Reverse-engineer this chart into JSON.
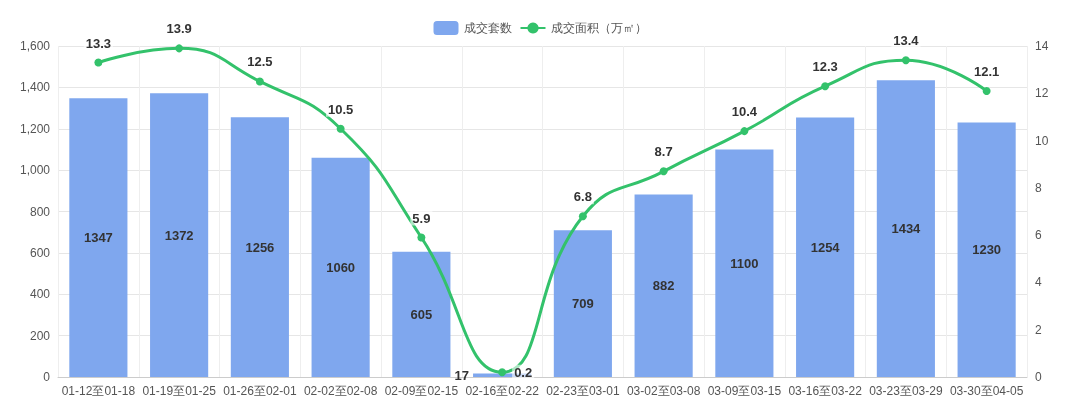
{
  "chart_data": {
    "type": "bar",
    "categories": [
      "01-12至01-18",
      "01-19至01-25",
      "01-26至02-01",
      "02-02至02-08",
      "02-09至02-15",
      "02-16至02-22",
      "02-23至03-01",
      "03-02至03-08",
      "03-09至03-15",
      "03-16至03-22",
      "03-23至03-29",
      "03-30至04-05"
    ],
    "series": [
      {
        "name": "成交套数",
        "color": "#7fa7ee",
        "values": [
          1347,
          1372,
          1256,
          1060,
          605,
          17,
          709,
          882,
          1100,
          1254,
          1434,
          1230
        ]
      },
      {
        "name": "成交面积（万㎡）",
        "type": "line",
        "axis": "y2",
        "color": "#33c26b",
        "values": [
          13.3,
          13.9,
          12.5,
          10.5,
          5.9,
          0.2,
          6.8,
          8.7,
          10.4,
          12.3,
          13.4,
          12.1
        ]
      }
    ],
    "ylim": [
      0,
      1600
    ],
    "yticks": [
      0,
      {
        "value": 200,
        "label": "200"
      },
      {
        "value": 400,
        "label": "400"
      },
      {
        "value": 600,
        "label": "600"
      },
      {
        "value": 800,
        "label": "800"
      },
      {
        "value": 1000,
        "label": "1,000"
      },
      {
        "value": 1200,
        "label": "1,200"
      },
      {
        "value": 1400,
        "label": "1,400"
      },
      {
        "value": 1600,
        "label": "1,600"
      }
    ],
    "y2lim": [
      0,
      14
    ],
    "y2ticks": [
      0,
      2,
      4,
      6,
      8,
      10,
      12,
      14
    ],
    "data_labels": true,
    "grid": true,
    "legend": "top",
    "marker": "circle"
  }
}
